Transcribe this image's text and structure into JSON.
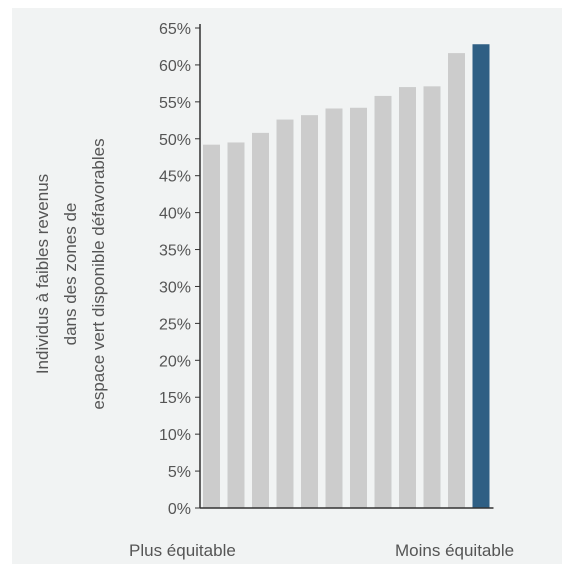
{
  "chart_data": {
    "type": "bar",
    "title": "",
    "ylabel_lines": [
      "Individus à faibles revenus",
      "dans des zones de",
      "espace vert disponible  défavorables"
    ],
    "x_left_caption": "Plus équitable",
    "x_right_caption": "Moins équitable",
    "ylim": [
      0,
      65
    ],
    "yticks": [
      "0%",
      "5%",
      "10%",
      "15%",
      "20%",
      "25%",
      "30%",
      "35%",
      "40%",
      "45%",
      "50%",
      "55%",
      "60%",
      "65%"
    ],
    "y_unit": "%",
    "values": [
      49.2,
      49.5,
      50.8,
      52.6,
      53.2,
      54.1,
      54.2,
      55.8,
      57.0,
      57.1,
      61.6,
      62.8
    ],
    "bar_color": "#cccccc",
    "highlight_color": "#2f5f84",
    "highlight_index": 11,
    "grid": false,
    "legend": "none"
  }
}
